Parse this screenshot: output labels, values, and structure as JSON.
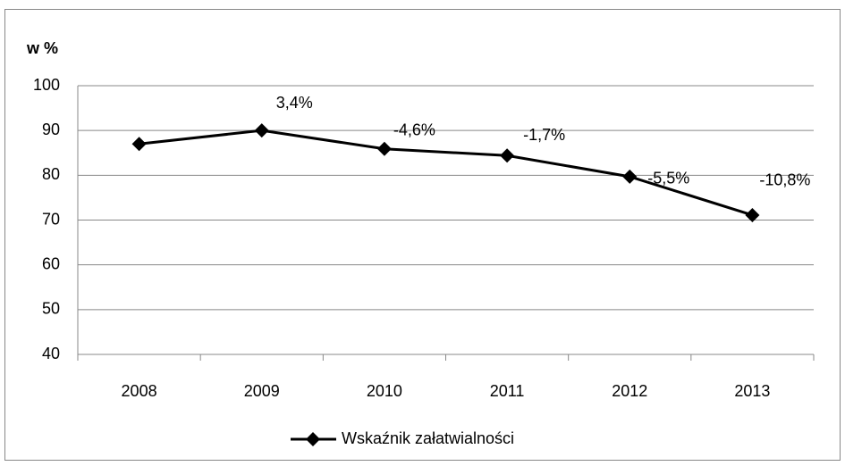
{
  "chart_data": {
    "type": "line",
    "y_label": "w %",
    "categories": [
      "2008",
      "2009",
      "2010",
      "2011",
      "2012",
      "2013"
    ],
    "series": [
      {
        "name": "Wskaźnik załatwialności",
        "color": "#000000",
        "values": [
          87,
          90,
          85.9,
          84.4,
          79.7,
          71.1
        ]
      }
    ],
    "annotations": [
      null,
      "3,4%",
      "-4,6%",
      "-1,7%",
      "-5,5%",
      "-10,8%"
    ],
    "ylim": [
      40,
      100
    ],
    "yticks": [
      40,
      50,
      60,
      70,
      80,
      90,
      100
    ],
    "grid": true,
    "legend": "bottom"
  }
}
